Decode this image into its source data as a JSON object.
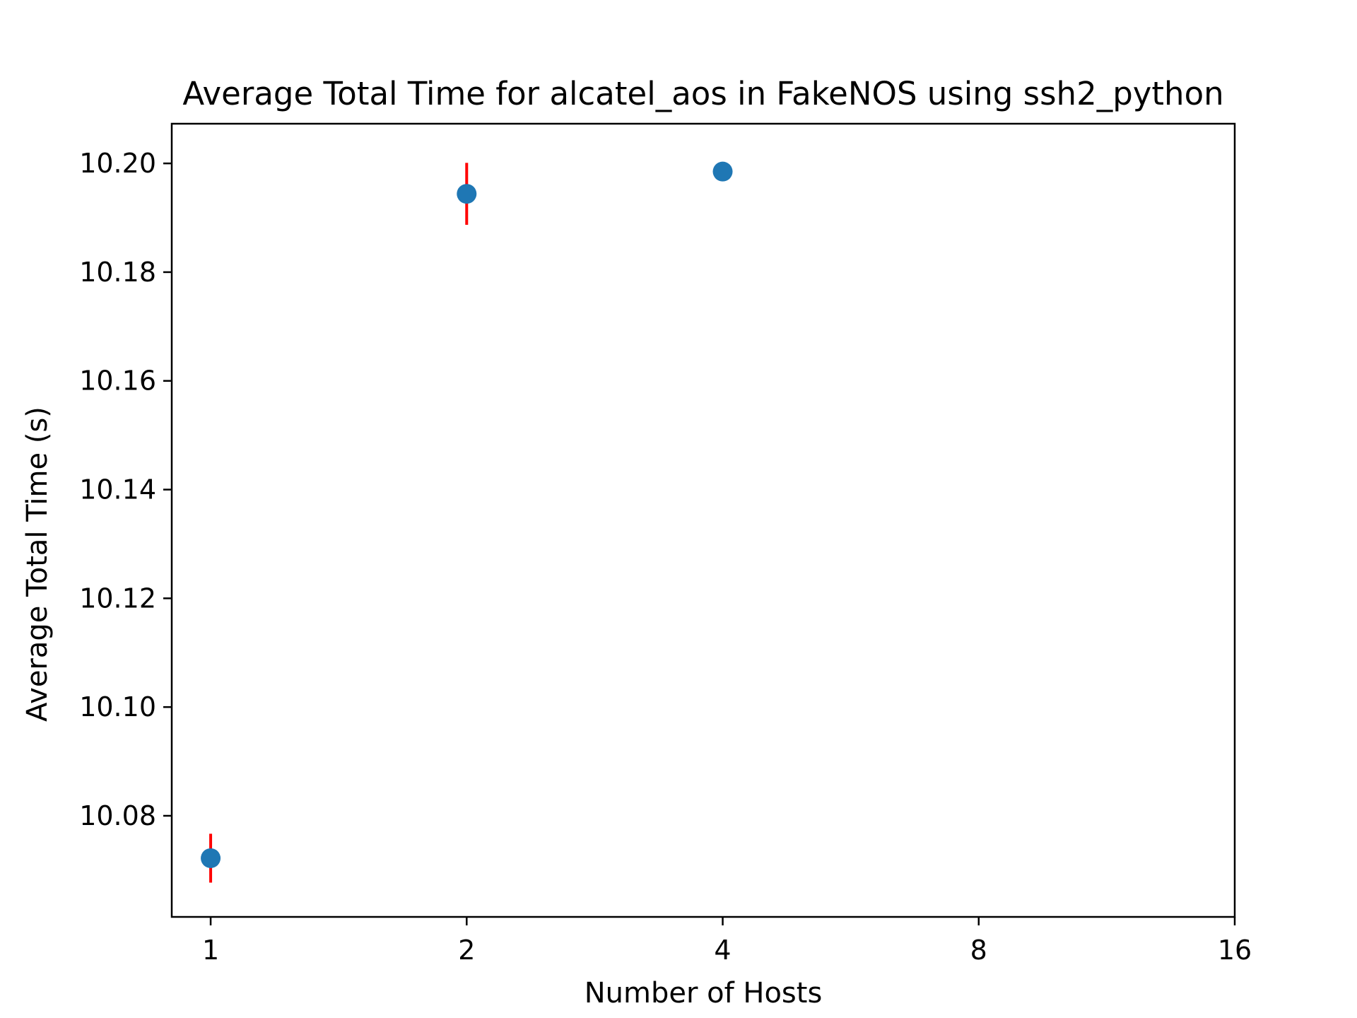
{
  "chart_data": {
    "type": "scatter",
    "title": "Average Total Time for alcatel_aos in FakeNOS using ssh2_python",
    "xlabel": "Number of Hosts",
    "ylabel": "Average Total Time (s)",
    "x_scale": "log2",
    "x_ticks": [
      "1",
      "2",
      "4",
      "8",
      "16"
    ],
    "y_ticks": [
      "10.08",
      "10.10",
      "10.12",
      "10.14",
      "10.16",
      "10.18",
      "10.20"
    ],
    "xlim": [
      0.9,
      16
    ],
    "ylim": [
      10.0614,
      10.2073
    ],
    "grid": false,
    "points": [
      {
        "x": 1,
        "y": 10.0722,
        "err": 0.0045
      },
      {
        "x": 2,
        "y": 10.1944,
        "err": 0.0057
      },
      {
        "x": 4,
        "y": 10.1985,
        "err": 0
      }
    ],
    "marker_color": "#1f77b4",
    "error_color": "#ff0000",
    "frame_color": "#000000"
  }
}
